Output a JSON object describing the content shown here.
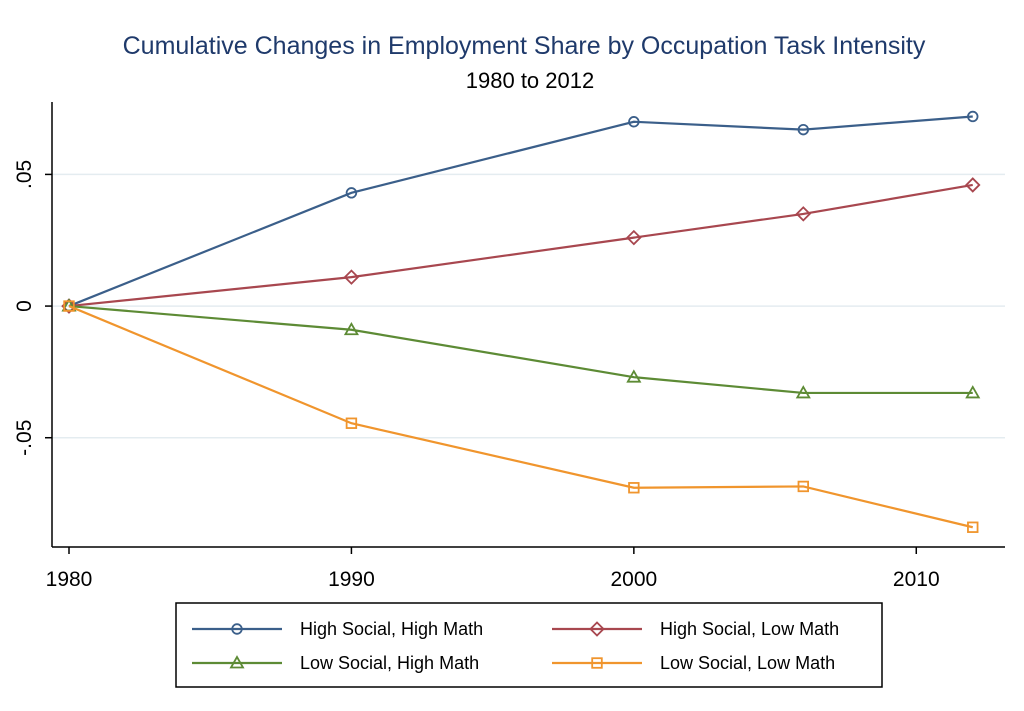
{
  "chart_data": {
    "type": "line",
    "title": "Cumulative Changes in Employment Share by Occupation Task Intensity",
    "subtitle": "1980 to 2012",
    "xlabel": "",
    "ylabel": "",
    "x": [
      1980,
      1990,
      2000,
      2006,
      2012
    ],
    "xlim": [
      1980,
      2013
    ],
    "ylim": [
      -0.0915,
      0.0775
    ],
    "x_ticks": [
      1980,
      1990,
      2000,
      2010
    ],
    "x_tick_labels": [
      "1980",
      "1990",
      "2000",
      "2010"
    ],
    "y_ticks": [
      -0.05,
      0,
      0.05
    ],
    "y_tick_labels": [
      "-.05",
      "0",
      ".05"
    ],
    "grid": true,
    "legend_position": "bottom",
    "series": [
      {
        "name": "High Social, High Math",
        "values": [
          0,
          0.043,
          0.07,
          0.067,
          0.072
        ],
        "color": "#3b5f8a",
        "marker": "circle"
      },
      {
        "name": "High Social, Low Math",
        "values": [
          0,
          0.011,
          0.026,
          0.035,
          0.046
        ],
        "color": "#a8474f",
        "marker": "diamond"
      },
      {
        "name": "Low Social, High Math",
        "values": [
          0,
          -0.009,
          -0.027,
          -0.033,
          -0.033
        ],
        "color": "#5d8b35",
        "marker": "triangle"
      },
      {
        "name": "Low Social, Low Math",
        "values": [
          0,
          -0.0445,
          -0.069,
          -0.0685,
          -0.084
        ],
        "color": "#f0952d",
        "marker": "square"
      }
    ]
  },
  "colors": {
    "title": "#1f3a6b",
    "grid": "#e4ecf0",
    "axis": "#000000"
  }
}
